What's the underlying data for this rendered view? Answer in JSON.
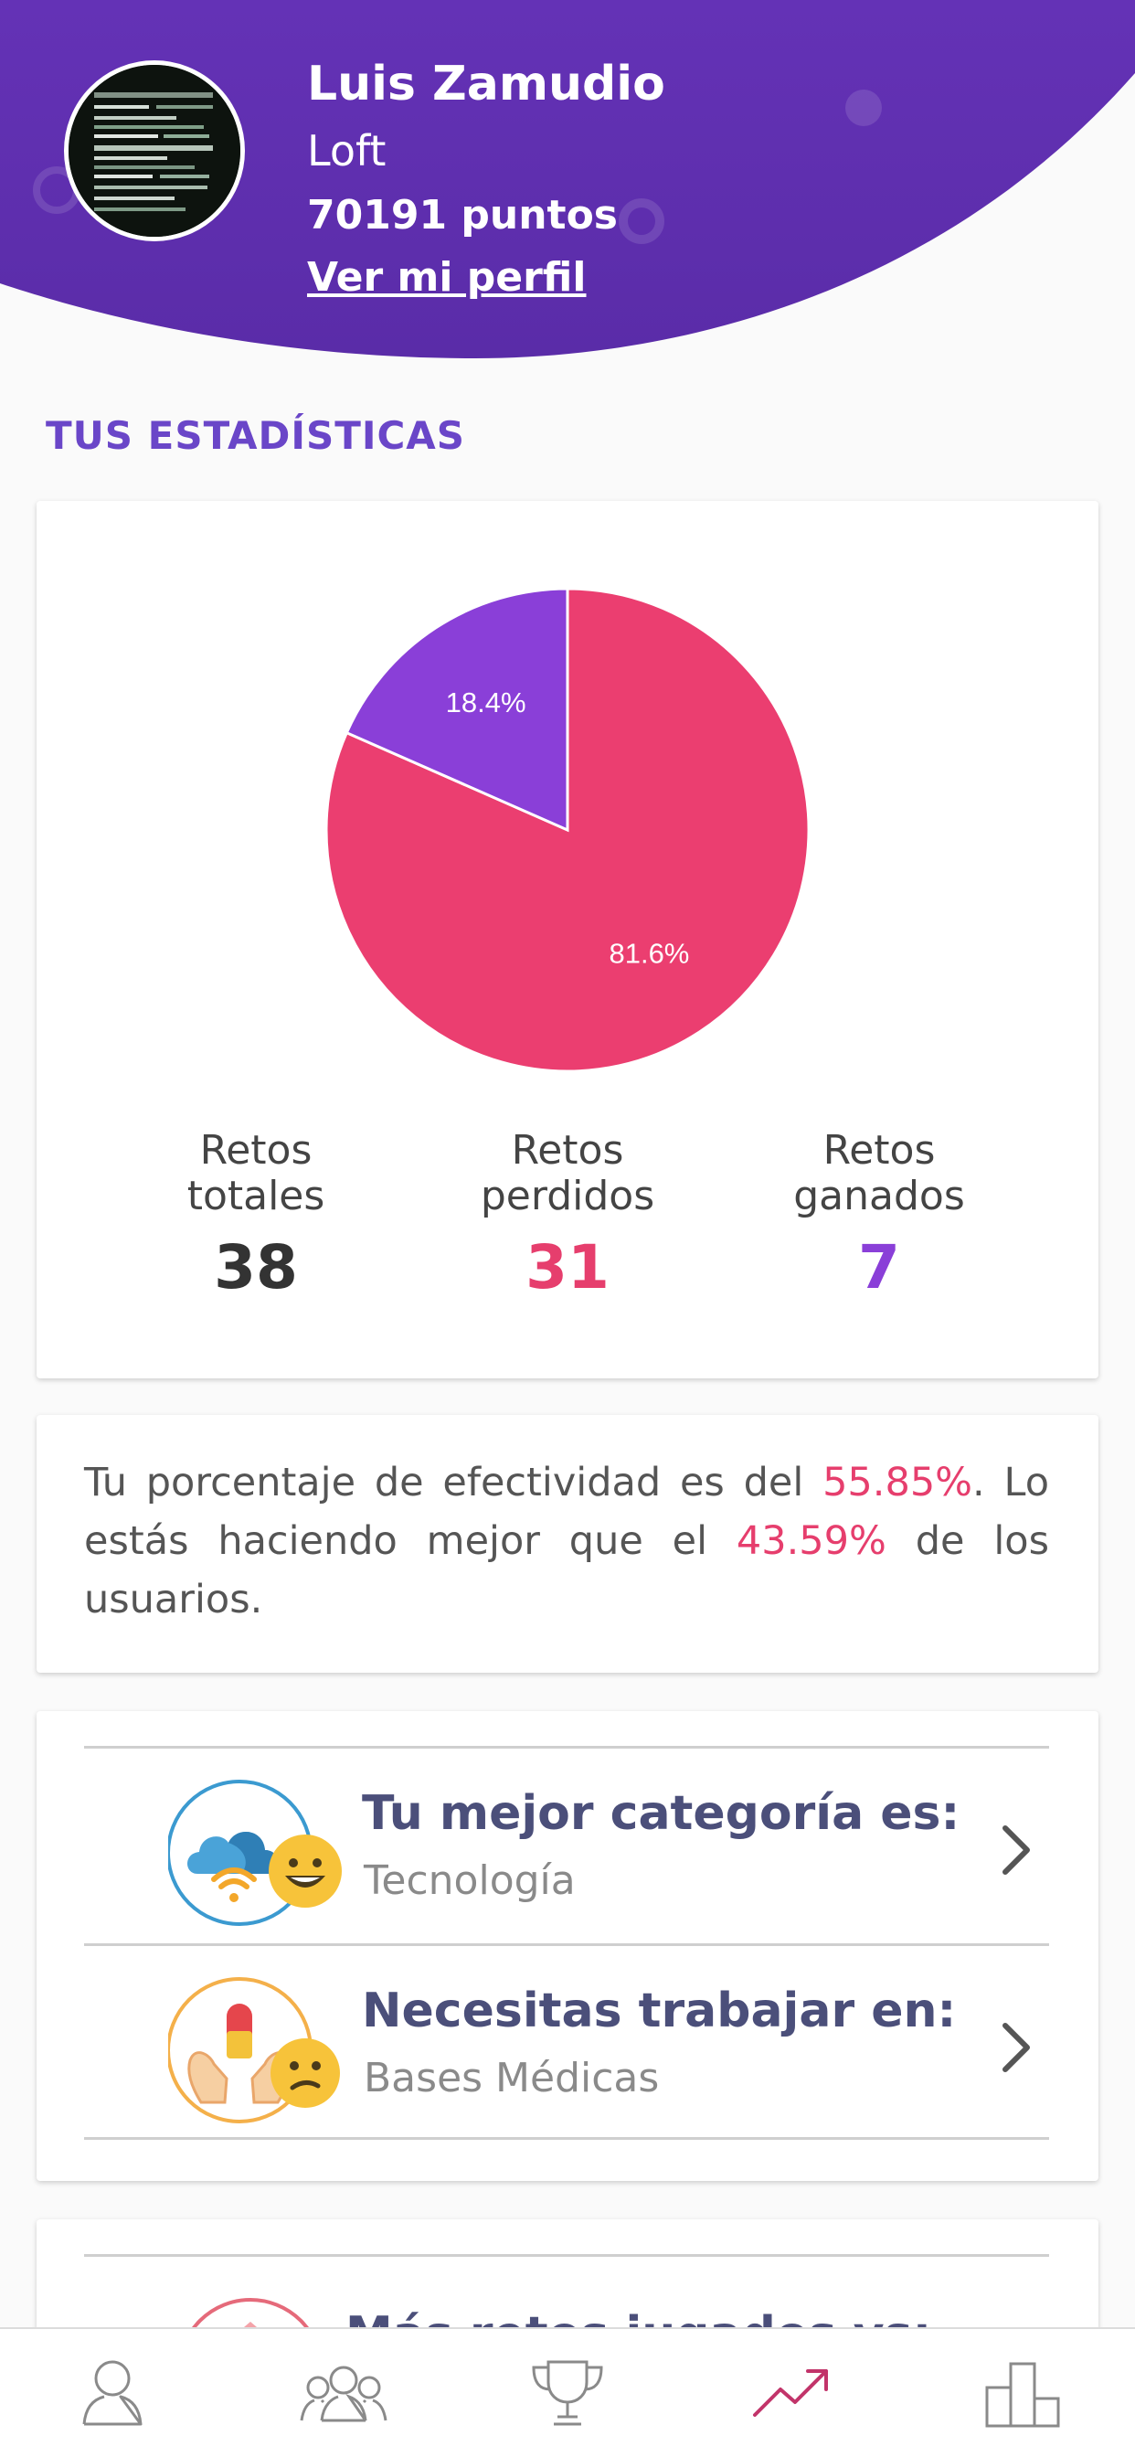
{
  "profile": {
    "name": "Luis Zamudio",
    "level": "Loft",
    "points": "70191 puntos",
    "profile_link": "Ver mi perfil"
  },
  "section_title": "TUS ESTADÍSTICAS",
  "chart_data": {
    "type": "pie",
    "slices": [
      {
        "label": "Retos perdidos",
        "value": 81.6,
        "display": "81.6%",
        "color": "#eb3e70"
      },
      {
        "label": "Retos ganados",
        "value": 18.4,
        "display": "18.4%",
        "color": "#8a3fd8"
      }
    ]
  },
  "stats": [
    {
      "label_line1": "Retos",
      "label_line2": "totales",
      "value": "38",
      "color": "#333333"
    },
    {
      "label_line1": "Retos",
      "label_line2": "perdidos",
      "value": "31",
      "color": "#e63e6d"
    },
    {
      "label_line1": "Retos",
      "label_line2": "ganados",
      "value": "7",
      "color": "#8a3fd8"
    }
  ],
  "effectiveness": {
    "part1": "Tu porcentaje de efectividad es del ",
    "value1": "55.85%",
    "part2": ". Lo estás haciendo mejor que el ",
    "value2": "43.59%",
    "part3": " de los usuarios."
  },
  "categories": [
    {
      "title": "Tu mejor categoría es:",
      "subtitle": "Tecnología",
      "icon": "technology-category-icon"
    },
    {
      "title": "Necesitas trabajar en:",
      "subtitle": "Bases Médicas",
      "icon": "medical-category-icon"
    }
  ],
  "more": {
    "title": "Más retos jugados vs:"
  },
  "colors": {
    "header": "#5e2fb0",
    "accent": "#6a46c8",
    "pink": "#e63e6d",
    "purple": "#8a3fd8"
  },
  "nav": [
    {
      "name": "profile-tab",
      "icon": "person-icon"
    },
    {
      "name": "friends-tab",
      "icon": "group-icon"
    },
    {
      "name": "trophies-tab",
      "icon": "trophy-icon"
    },
    {
      "name": "stats-tab",
      "icon": "trending-up-icon",
      "active": true
    },
    {
      "name": "ranking-tab",
      "icon": "podium-icon"
    }
  ]
}
